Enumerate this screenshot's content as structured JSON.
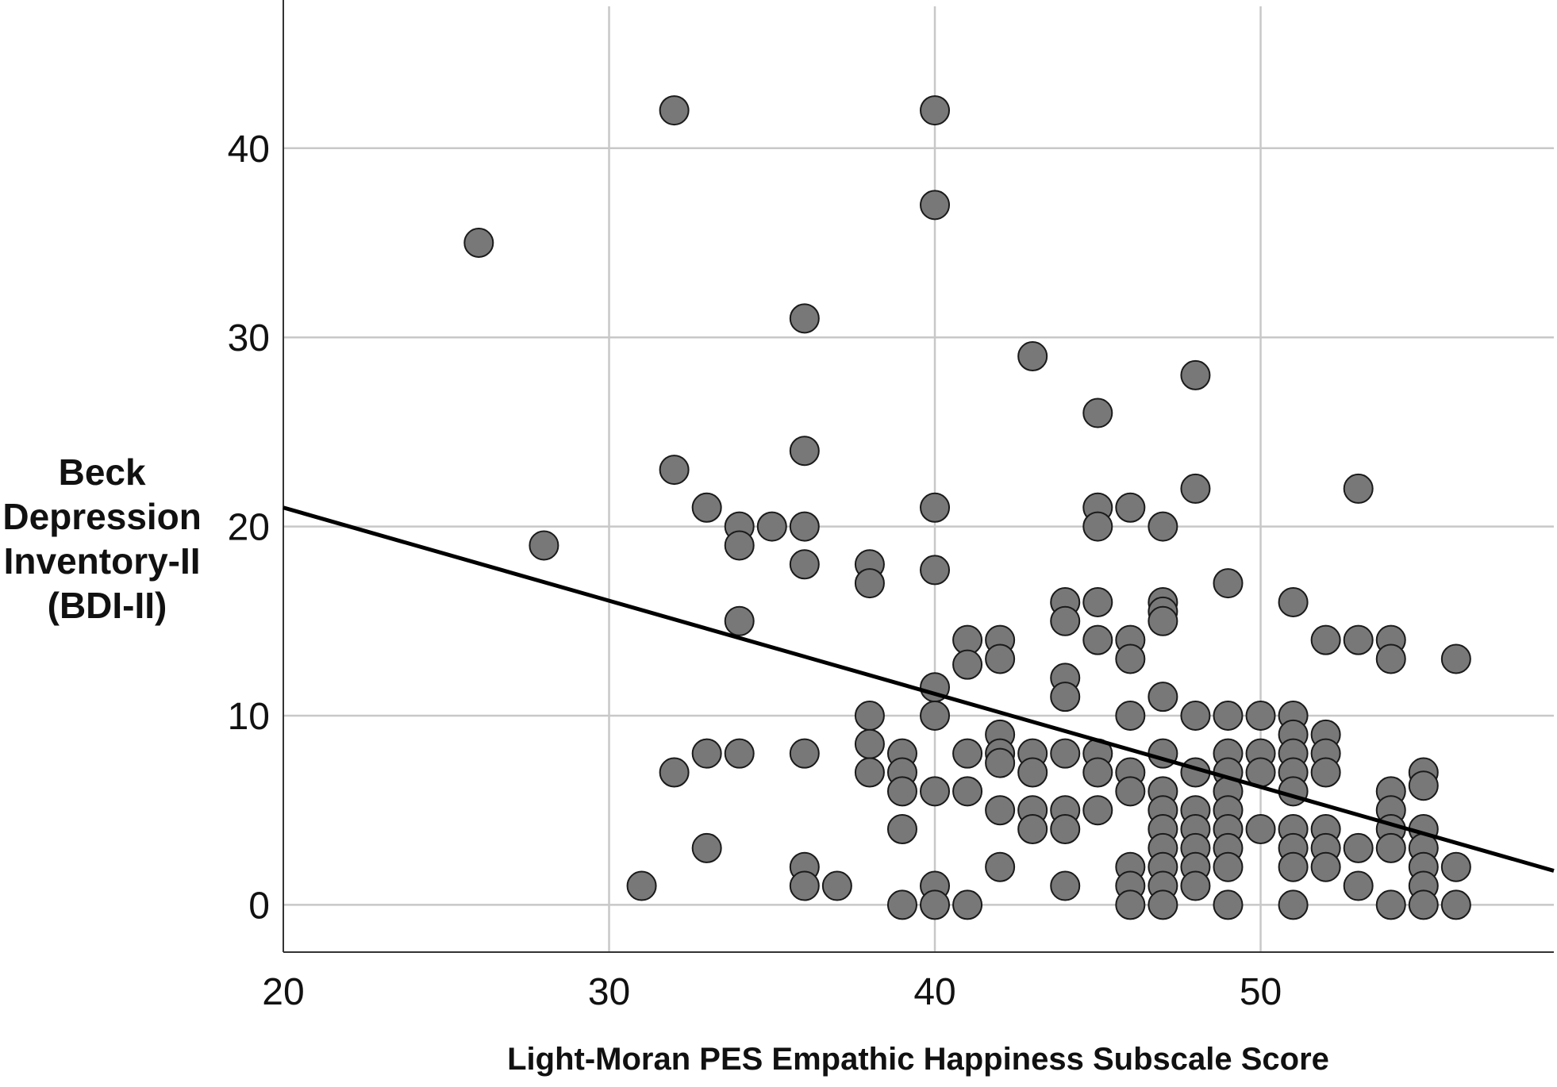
{
  "chart_data": {
    "type": "scatter",
    "title": "",
    "xlabel": "Light-Moran PES Empathic Happiness Subscale Score",
    "ylabel_lines": [
      "Beck",
      "Depression",
      "Inventory-II",
      "(BDI-II)"
    ],
    "xlim": [
      20,
      59
    ],
    "ylim": [
      -2.5,
      47.5
    ],
    "x_ticks": [
      20,
      30,
      40,
      50
    ],
    "y_ticks": [
      0,
      10,
      20,
      30,
      40
    ],
    "x_grid": [
      30,
      40,
      50
    ],
    "y_grid": [
      0,
      10,
      20,
      30,
      40
    ],
    "grid": true,
    "marker_color": "#787878",
    "marker_edge_color": "#1a1a1a",
    "fit_line": {
      "x": [
        20,
        59
      ],
      "y": [
        21.0,
        1.8
      ],
      "color": "#000000"
    },
    "points": [
      [
        26,
        35
      ],
      [
        28,
        19
      ],
      [
        31,
        1
      ],
      [
        32,
        42
      ],
      [
        32,
        23
      ],
      [
        32,
        7
      ],
      [
        33,
        21
      ],
      [
        33,
        8
      ],
      [
        33,
        3
      ],
      [
        34,
        20
      ],
      [
        34,
        19
      ],
      [
        34,
        15
      ],
      [
        34,
        8
      ],
      [
        35,
        20
      ],
      [
        36,
        31
      ],
      [
        36,
        24
      ],
      [
        36,
        20
      ],
      [
        36,
        18
      ],
      [
        36,
        8
      ],
      [
        36,
        2
      ],
      [
        36,
        1
      ],
      [
        37,
        1
      ],
      [
        38,
        18
      ],
      [
        38,
        17
      ],
      [
        38,
        10
      ],
      [
        38,
        8.5
      ],
      [
        38,
        7
      ],
      [
        39,
        8
      ],
      [
        39,
        7
      ],
      [
        39,
        6
      ],
      [
        39,
        4
      ],
      [
        39,
        0
      ],
      [
        40,
        42
      ],
      [
        40,
        37
      ],
      [
        40,
        21
      ],
      [
        40,
        17.7
      ],
      [
        40,
        11.5
      ],
      [
        40,
        10
      ],
      [
        40,
        6
      ],
      [
        40,
        1
      ],
      [
        40,
        0
      ],
      [
        41,
        14
      ],
      [
        41,
        12.7
      ],
      [
        41,
        8
      ],
      [
        41,
        6
      ],
      [
        41,
        0
      ],
      [
        42,
        14
      ],
      [
        42,
        13
      ],
      [
        42,
        9
      ],
      [
        42,
        8
      ],
      [
        42,
        7.5
      ],
      [
        42,
        5
      ],
      [
        42,
        2
      ],
      [
        43,
        29
      ],
      [
        43,
        8
      ],
      [
        43,
        7
      ],
      [
        43,
        5
      ],
      [
        43,
        4
      ],
      [
        44,
        16
      ],
      [
        44,
        15
      ],
      [
        44,
        12
      ],
      [
        44,
        11
      ],
      [
        44,
        8
      ],
      [
        44,
        5
      ],
      [
        44,
        4
      ],
      [
        44,
        1
      ],
      [
        45,
        26
      ],
      [
        45,
        21
      ],
      [
        45,
        20
      ],
      [
        45,
        16
      ],
      [
        45,
        14
      ],
      [
        45,
        8
      ],
      [
        45,
        7
      ],
      [
        45,
        5
      ],
      [
        46,
        21
      ],
      [
        46,
        14
      ],
      [
        46,
        13
      ],
      [
        46,
        10
      ],
      [
        46,
        7
      ],
      [
        46,
        6
      ],
      [
        46,
        2
      ],
      [
        46,
        1
      ],
      [
        46,
        0
      ],
      [
        47,
        20
      ],
      [
        47,
        16
      ],
      [
        47,
        15.5
      ],
      [
        47,
        15
      ],
      [
        47,
        11
      ],
      [
        47,
        8
      ],
      [
        47,
        6
      ],
      [
        47,
        5
      ],
      [
        47,
        4
      ],
      [
        47,
        3
      ],
      [
        47,
        2
      ],
      [
        47,
        1
      ],
      [
        47,
        0
      ],
      [
        48,
        28
      ],
      [
        48,
        22
      ],
      [
        48,
        10
      ],
      [
        48,
        7
      ],
      [
        48,
        5
      ],
      [
        48,
        4
      ],
      [
        48,
        3
      ],
      [
        48,
        2
      ],
      [
        48,
        1
      ],
      [
        49,
        17
      ],
      [
        49,
        10
      ],
      [
        49,
        8
      ],
      [
        49,
        7
      ],
      [
        49,
        6
      ],
      [
        49,
        5
      ],
      [
        49,
        4
      ],
      [
        49,
        3
      ],
      [
        49,
        2
      ],
      [
        49,
        0
      ],
      [
        50,
        10
      ],
      [
        50,
        8
      ],
      [
        50,
        7
      ],
      [
        50,
        4
      ],
      [
        51,
        16
      ],
      [
        51,
        10
      ],
      [
        51,
        9
      ],
      [
        51,
        8
      ],
      [
        51,
        7
      ],
      [
        51,
        6
      ],
      [
        51,
        4
      ],
      [
        51,
        3
      ],
      [
        51,
        2
      ],
      [
        51,
        0
      ],
      [
        52,
        14
      ],
      [
        52,
        9
      ],
      [
        52,
        8
      ],
      [
        52,
        7
      ],
      [
        52,
        4
      ],
      [
        52,
        3
      ],
      [
        52,
        2
      ],
      [
        53,
        22
      ],
      [
        53,
        14
      ],
      [
        53,
        3
      ],
      [
        53,
        1
      ],
      [
        54,
        14
      ],
      [
        54,
        13
      ],
      [
        54,
        6
      ],
      [
        54,
        5
      ],
      [
        54,
        4
      ],
      [
        54,
        3
      ],
      [
        54,
        0
      ],
      [
        55,
        7
      ],
      [
        55,
        6.3
      ],
      [
        55,
        4
      ],
      [
        55,
        3
      ],
      [
        55,
        2
      ],
      [
        55,
        1
      ],
      [
        55,
        0
      ],
      [
        56,
        13
      ],
      [
        56,
        2
      ],
      [
        56,
        0
      ]
    ]
  }
}
